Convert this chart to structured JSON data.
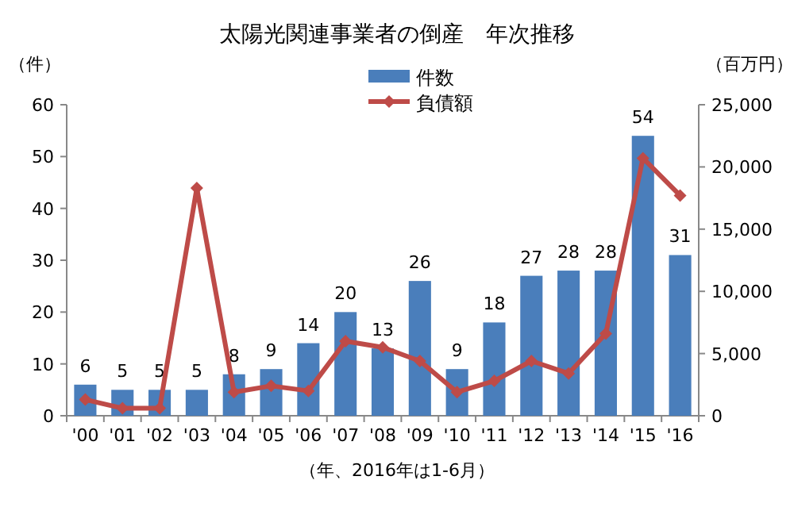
{
  "chart_data": {
    "type": "bar",
    "title": "太陽光関連事業者の倒産　年次推移",
    "xlabel": "（年、2016年は1-6月）",
    "ylabel": "（件）",
    "y2label": "（百万円）",
    "categories": [
      "'00",
      "'01",
      "'02",
      "'03",
      "'04",
      "'05",
      "'06",
      "'07",
      "'08",
      "'09",
      "'10",
      "'11",
      "'12",
      "'13",
      "'14",
      "'15",
      "'16"
    ],
    "series": [
      {
        "name": "件数",
        "color": "#4a7ebb",
        "values": [
          6,
          5,
          5,
          5,
          8,
          9,
          14,
          20,
          13,
          26,
          9,
          18,
          27,
          28,
          28,
          54,
          31
        ],
        "value_labels": [
          "6",
          "5",
          "5",
          "5",
          "8",
          "9",
          "14",
          "20",
          "13",
          "26",
          "9",
          "18",
          "27",
          "28",
          "28",
          "54",
          "31"
        ]
      },
      {
        "name": "負債額",
        "type": "line",
        "axis": "y2",
        "color": "#be4b48",
        "marker": "diamond",
        "values": [
          1300,
          600,
          600,
          18300,
          1900,
          2400,
          2000,
          6000,
          5500,
          4400,
          1900,
          2800,
          4400,
          3400,
          6600,
          20700,
          17700
        ]
      }
    ],
    "ylim": [
      0,
      60
    ],
    "yticks": [
      0,
      10,
      20,
      30,
      40,
      50,
      60
    ],
    "y2lim": [
      0,
      25000
    ],
    "y2ticks": [
      {
        "value": 0,
        "label": "0"
      },
      {
        "value": 5000,
        "label": "5,000"
      },
      {
        "value": 10000,
        "label": "10,000"
      },
      {
        "value": 15000,
        "label": "15,000"
      },
      {
        "value": 20000,
        "label": "20,000"
      },
      {
        "value": 25000,
        "label": "25,000"
      }
    ],
    "legend": "top",
    "grid": false
  }
}
